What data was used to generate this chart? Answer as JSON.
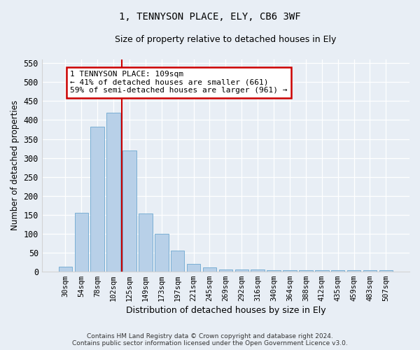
{
  "title": "1, TENNYSON PLACE, ELY, CB6 3WF",
  "subtitle": "Size of property relative to detached houses in Ely",
  "xlabel": "Distribution of detached houses by size in Ely",
  "ylabel": "Number of detached properties",
  "categories": [
    "30sqm",
    "54sqm",
    "78sqm",
    "102sqm",
    "125sqm",
    "149sqm",
    "173sqm",
    "197sqm",
    "221sqm",
    "245sqm",
    "269sqm",
    "292sqm",
    "316sqm",
    "340sqm",
    "364sqm",
    "388sqm",
    "412sqm",
    "435sqm",
    "459sqm",
    "483sqm",
    "507sqm"
  ],
  "values": [
    12,
    155,
    382,
    420,
    320,
    153,
    100,
    55,
    20,
    10,
    5,
    5,
    5,
    3,
    3,
    3,
    3,
    3,
    3,
    3,
    3
  ],
  "bar_color": "#b8d0e8",
  "bar_edge_color": "#7aafd4",
  "redline_x": 3.5,
  "annotation_line1": "1 TENNYSON PLACE: 109sqm",
  "annotation_line2": "← 41% of detached houses are smaller (661)",
  "annotation_line3": "59% of semi-detached houses are larger (961) →",
  "annotation_box_color": "#ffffff",
  "annotation_box_edge": "#cc0000",
  "redline_color": "#cc0000",
  "ylim": [
    0,
    560
  ],
  "yticks": [
    0,
    50,
    100,
    150,
    200,
    250,
    300,
    350,
    400,
    450,
    500,
    550
  ],
  "footer_line1": "Contains HM Land Registry data © Crown copyright and database right 2024.",
  "footer_line2": "Contains public sector information licensed under the Open Government Licence v3.0.",
  "bg_color": "#e8eef5",
  "plot_bg_color": "#e8eef5"
}
